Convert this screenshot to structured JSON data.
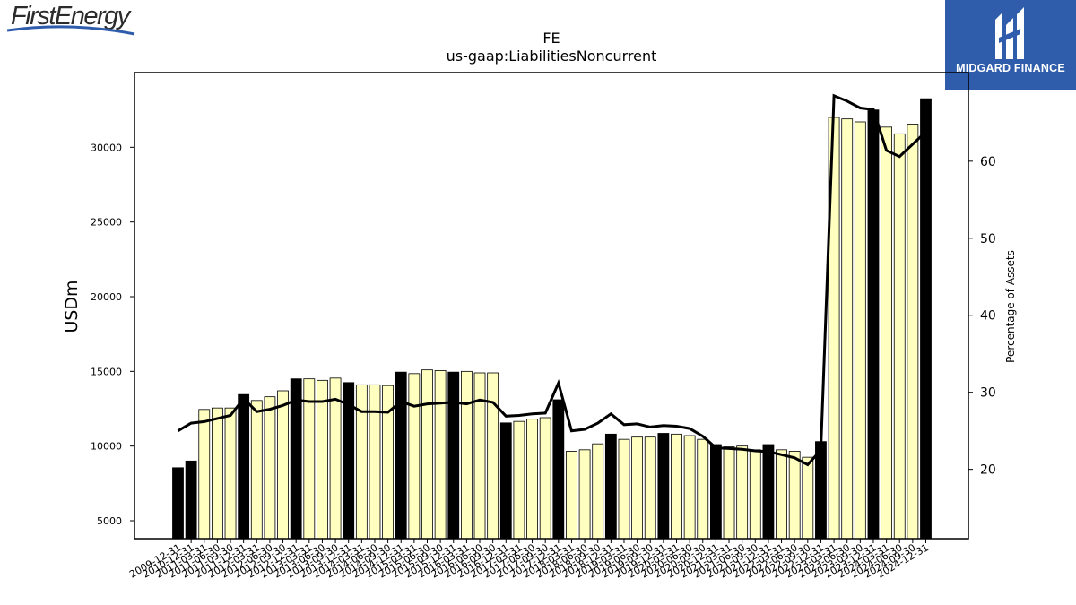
{
  "logos": {
    "left_brand": "FirstEnergy",
    "right_brand": "MIDGARD FINANCE",
    "accent_color": "#2f5cab"
  },
  "chart_data": {
    "type": "bar",
    "title": "FE",
    "subtitle": "us-gaap:LiabilitiesNoncurrent",
    "ylabel": "USDm",
    "y2label": "Percentage of Assets",
    "ylim": [
      3800,
      35000
    ],
    "y2lim": [
      11,
      71.5
    ],
    "yticks": [
      5000,
      10000,
      15000,
      20000,
      25000,
      30000
    ],
    "y2ticks": [
      20,
      30,
      40,
      50,
      60
    ],
    "grid": false,
    "bar_colors": {
      "annual": "#000000",
      "quarterly": "#ffffc0"
    },
    "line_color": "#000000",
    "categories": [
      "2009-12-31",
      "2010-12-31",
      "2011-03-31",
      "2011-06-30",
      "2011-09-30",
      "2011-12-31",
      "2012-03-31",
      "2012-06-30",
      "2012-09-30",
      "2012-12-31",
      "2013-03-31",
      "2013-06-30",
      "2013-09-30",
      "2013-12-31",
      "2014-03-31",
      "2014-06-30",
      "2014-09-30",
      "2014-12-31",
      "2015-03-31",
      "2015-06-30",
      "2015-09-30",
      "2015-12-31",
      "2016-03-31",
      "2016-06-30",
      "2016-09-30",
      "2016-12-31",
      "2017-03-31",
      "2017-06-30",
      "2017-09-30",
      "2017-12-31",
      "2018-03-31",
      "2018-06-30",
      "2018-09-30",
      "2018-12-31",
      "2019-03-31",
      "2019-06-30",
      "2019-09-30",
      "2019-12-31",
      "2020-03-31",
      "2020-06-30",
      "2020-09-30",
      "2020-12-31",
      "2021-03-31",
      "2021-06-30",
      "2021-09-30",
      "2021-12-31",
      "2022-03-31",
      "2022-06-30",
      "2022-09-30",
      "2022-12-31",
      "2023-03-31",
      "2023-06-30",
      "2023-09-30",
      "2023-12-31",
      "2024-03-31",
      "2024-06-30",
      "2024-09-30",
      "2024-12-31"
    ],
    "period_types": [
      "A",
      "A",
      "Q",
      "Q",
      "Q",
      "A",
      "Q",
      "Q",
      "Q",
      "A",
      "Q",
      "Q",
      "Q",
      "A",
      "Q",
      "Q",
      "Q",
      "A",
      "Q",
      "Q",
      "Q",
      "A",
      "Q",
      "Q",
      "Q",
      "A",
      "Q",
      "Q",
      "Q",
      "A",
      "Q",
      "Q",
      "Q",
      "A",
      "Q",
      "Q",
      "Q",
      "A",
      "Q",
      "Q",
      "Q",
      "A",
      "Q",
      "Q",
      "Q",
      "A",
      "Q",
      "Q",
      "Q",
      "A",
      "Q",
      "Q",
      "Q",
      "A",
      "Q",
      "Q",
      "Q",
      "A"
    ],
    "series": [
      {
        "kind": "bar",
        "axis": "left",
        "values": [
          8550,
          9000,
          12450,
          12550,
          12550,
          13450,
          13050,
          13300,
          13700,
          14500,
          14500,
          14400,
          14550,
          14250,
          14100,
          14100,
          14050,
          14950,
          14850,
          15100,
          15050,
          14950,
          15000,
          14900,
          14900,
          11550,
          11650,
          11800,
          11900,
          13100,
          9650,
          9750,
          10150,
          10800,
          10450,
          10600,
          10600,
          10850,
          10800,
          10700,
          10450,
          10100,
          9950,
          10000,
          9750,
          10100,
          9750,
          9650,
          9250,
          10300,
          32000,
          31900,
          31700,
          32500,
          31350,
          30900,
          31550,
          33250
        ]
      },
      {
        "kind": "line",
        "axis": "right",
        "values": [
          25,
          26,
          26.2,
          26.6,
          27,
          29.2,
          27.5,
          27.8,
          28.3,
          29,
          28.8,
          28.8,
          29.1,
          28.4,
          27.5,
          27.5,
          27.4,
          28.8,
          28.2,
          28.5,
          28.6,
          28.7,
          28.5,
          29,
          28.7,
          26.9,
          27.0,
          27.2,
          27.3,
          31.2,
          25,
          25.2,
          26,
          27.2,
          25.8,
          25.9,
          25.5,
          25.7,
          25.6,
          25.3,
          24.3,
          22.8,
          22.7,
          22.6,
          22.4,
          22.3,
          21.9,
          21.5,
          20.6,
          22.5,
          68.5,
          67.8,
          66.9,
          66.7,
          61.4,
          60.6,
          62.2,
          63.8
        ]
      }
    ]
  }
}
